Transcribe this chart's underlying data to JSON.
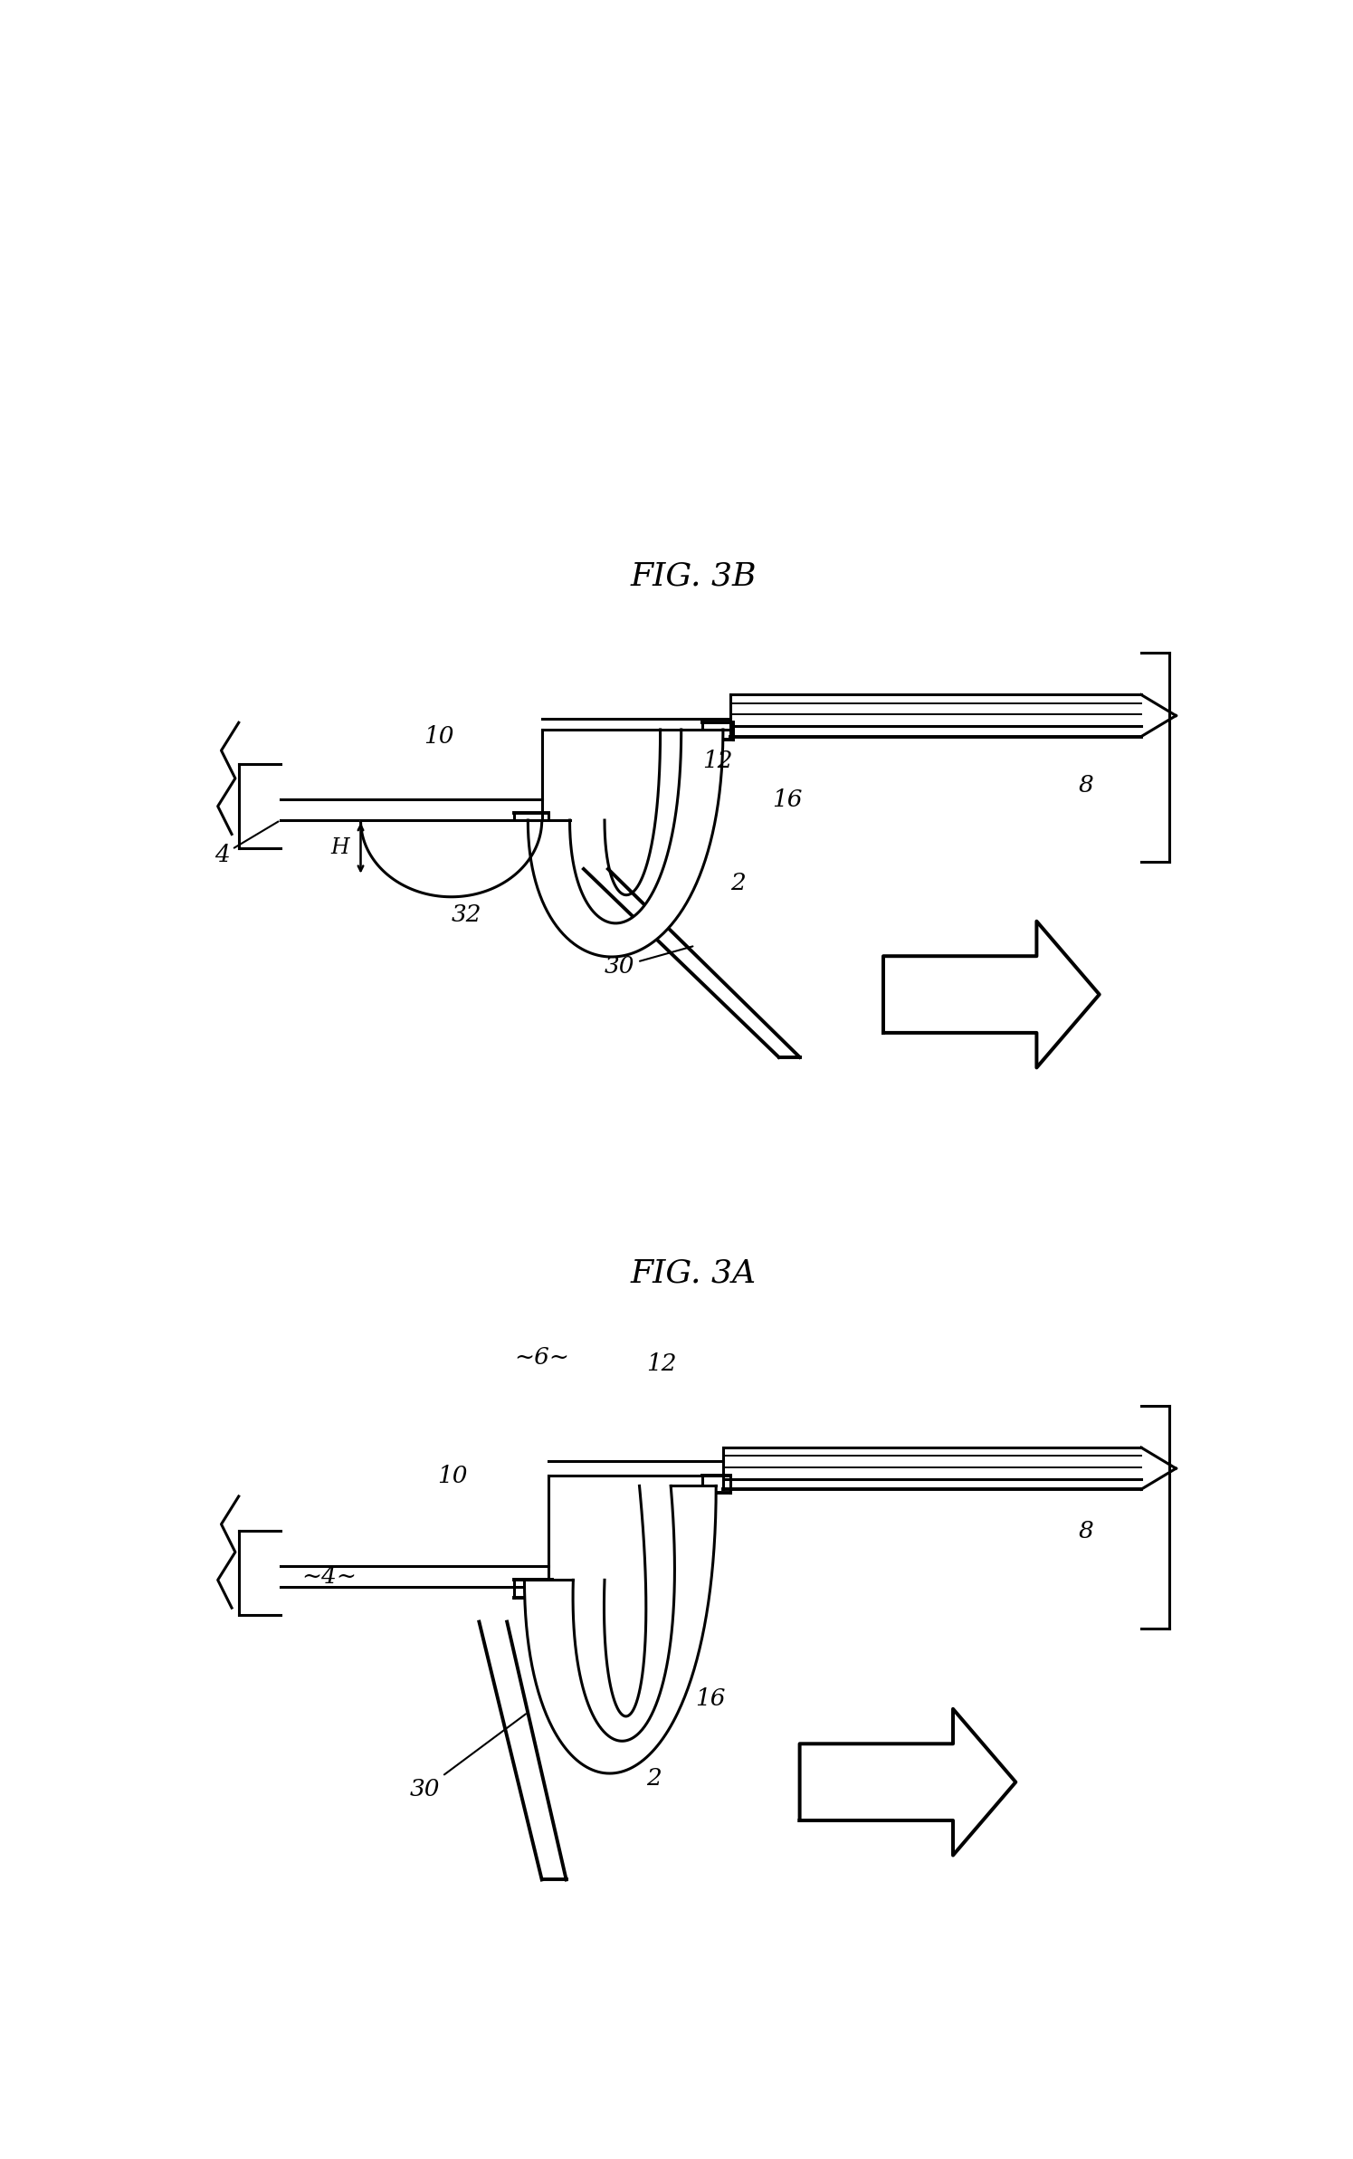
{
  "fig_width": 14.95,
  "fig_height": 23.85,
  "bg_color": "#ffffff",
  "line_color": "#000000",
  "lw": 2.2,
  "tlw": 1.4,
  "thklw": 2.8,
  "fig3a_title": "FIG. 3A",
  "fig3b_title": "FIG. 3B"
}
